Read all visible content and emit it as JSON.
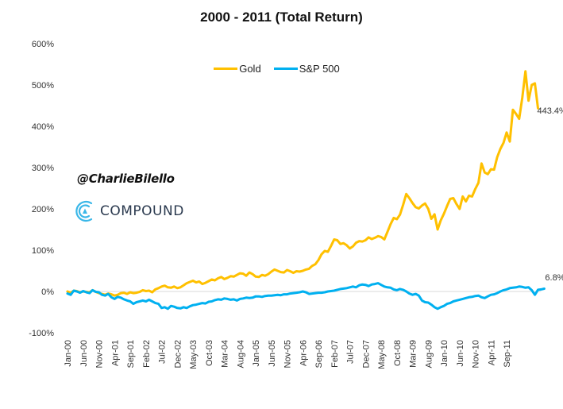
{
  "chart_data": {
    "type": "line",
    "title": "2000 - 2011 (Total Return)",
    "xlabel": "",
    "ylabel": "",
    "ylim": [
      -100,
      600
    ],
    "yticks": [
      "-100%",
      "0%",
      "100%",
      "200%",
      "300%",
      "400%",
      "500%",
      "600%"
    ],
    "ytick_values": [
      -100,
      0,
      100,
      200,
      300,
      400,
      500,
      600
    ],
    "xticks": [
      "Jan-00",
      "Jun-00",
      "Nov-00",
      "Apr-01",
      "Sep-01",
      "Feb-02",
      "Jul-02",
      "Dec-02",
      "May-03",
      "Oct-03",
      "Mar-04",
      "Aug-04",
      "Jan-05",
      "Jun-05",
      "Nov-05",
      "Apr-06",
      "Sep-06",
      "Feb-07",
      "Jul-07",
      "Dec-07",
      "May-08",
      "Oct-08",
      "Mar-09",
      "Aug-09",
      "Jan-10",
      "Jun-10",
      "Nov-10",
      "Apr-11",
      "Sep-11"
    ],
    "x_months_total": 144,
    "grid": false,
    "zero_line": true,
    "legend": {
      "position": "top-center",
      "entries": [
        "Gold",
        "S&P 500"
      ]
    },
    "series": [
      {
        "name": "Gold",
        "color": "#FFC000",
        "end_label": "443.4%",
        "values": [
          0,
          -3,
          2,
          1,
          -2,
          0,
          -1,
          -2,
          3,
          -1,
          -4,
          -6,
          -8,
          -5,
          -7,
          -10,
          -8,
          -4,
          -3,
          -6,
          -2,
          -4,
          -3,
          -1,
          3,
          1,
          2,
          -2,
          5,
          8,
          12,
          14,
          10,
          9,
          12,
          8,
          10,
          15,
          20,
          23,
          26,
          22,
          24,
          18,
          21,
          25,
          29,
          27,
          32,
          35,
          30,
          33,
          37,
          36,
          40,
          44,
          43,
          38,
          46,
          42,
          36,
          35,
          40,
          38,
          42,
          48,
          53,
          50,
          47,
          46,
          52,
          49,
          45,
          49,
          48,
          50,
          53,
          55,
          62,
          66,
          76,
          90,
          98,
          96,
          110,
          126,
          124,
          115,
          117,
          112,
          104,
          109,
          118,
          122,
          121,
          124,
          131,
          127,
          130,
          134,
          132,
          126,
          144,
          163,
          178,
          175,
          186,
          210,
          236,
          226,
          214,
          204,
          201,
          208,
          213,
          200,
          176,
          187,
          150,
          172,
          188,
          207,
          224,
          226,
          212,
          200,
          230,
          218,
          232,
          230,
          248,
          263,
          310,
          288,
          284,
          296,
          295,
          325,
          345,
          360,
          385,
          363,
          440,
          430,
          418,
          470,
          533,
          462,
          500,
          504,
          443.4
        ]
      },
      {
        "name": "S&P 500",
        "color": "#00B0F0",
        "end_label": "6.8%",
        "values": [
          -5,
          -8,
          2,
          0,
          -3,
          1,
          -2,
          -4,
          3,
          -1,
          -2,
          -8,
          -10,
          -6,
          -14,
          -18,
          -13,
          -15,
          -19,
          -22,
          -24,
          -30,
          -26,
          -24,
          -22,
          -24,
          -20,
          -24,
          -28,
          -30,
          -40,
          -38,
          -42,
          -35,
          -37,
          -40,
          -41,
          -38,
          -40,
          -36,
          -33,
          -32,
          -30,
          -28,
          -29,
          -25,
          -24,
          -21,
          -19,
          -20,
          -17,
          -18,
          -20,
          -19,
          -22,
          -18,
          -17,
          -15,
          -16,
          -15,
          -12,
          -12,
          -13,
          -11,
          -10,
          -10,
          -9,
          -8,
          -9,
          -7,
          -7,
          -5,
          -4,
          -3,
          -2,
          0,
          -2,
          -6,
          -5,
          -4,
          -3,
          -3,
          -2,
          0,
          1,
          2,
          4,
          6,
          7,
          8,
          10,
          12,
          10,
          15,
          17,
          16,
          13,
          17,
          18,
          20,
          16,
          12,
          10,
          9,
          5,
          3,
          6,
          4,
          0,
          -5,
          -8,
          -6,
          -10,
          -22,
          -26,
          -27,
          -32,
          -38,
          -42,
          -38,
          -35,
          -30,
          -28,
          -24,
          -22,
          -20,
          -18,
          -16,
          -14,
          -13,
          -11,
          -10,
          -14,
          -16,
          -12,
          -8,
          -7,
          -4,
          0,
          3,
          5,
          8,
          9,
          10,
          12,
          11,
          9,
          10,
          3,
          -8,
          4,
          5,
          6.8
        ]
      }
    ],
    "annotations": [
      "443.4%",
      "6.8%"
    ]
  },
  "watermark": {
    "handle": "@CharlieBilello",
    "brand": "COMPOUND",
    "brand_icon": "compound-logo-icon"
  },
  "colors": {
    "gold": "#FFC000",
    "sp500": "#00B0F0",
    "zero_line": "#D9D9D9",
    "brand_blue": "#3ab7e8",
    "brand_text": "#2b3a4f"
  }
}
